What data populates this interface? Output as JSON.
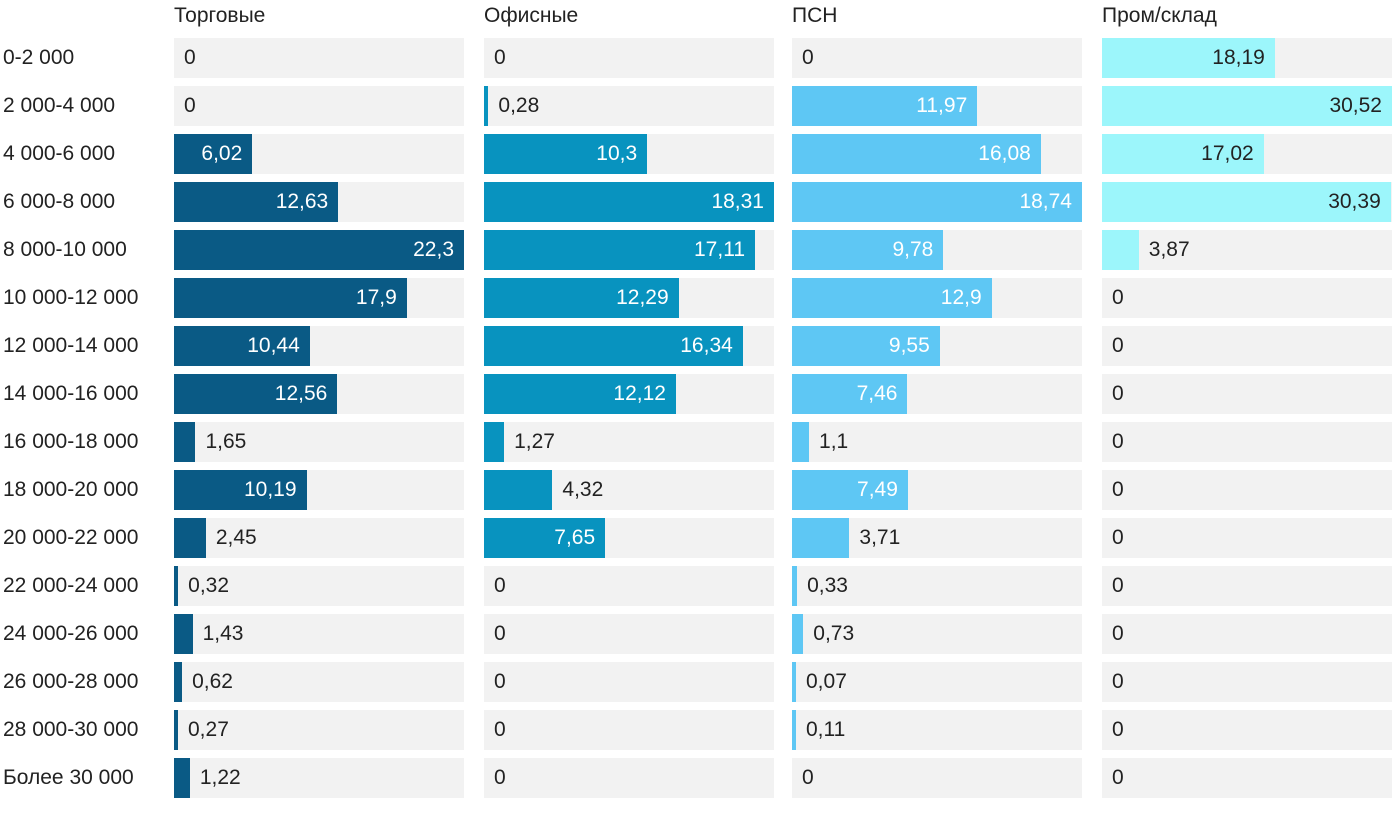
{
  "chart_data": {
    "type": "bar",
    "orientation": "horizontal",
    "categories": [
      "0-2 000",
      "2 000-4 000",
      "4 000-6 000",
      "6 000-8 000",
      "8 000-10 000",
      "10 000-12 000",
      "12 000-14 000",
      "14 000-16 000",
      "16 000-18 000",
      "18 000-20 000",
      "20 000-22 000",
      "22 000-24 000",
      "24 000-26 000",
      "26 000-28 000",
      "28 000-30 000",
      "Более 30 000"
    ],
    "series": [
      {
        "name": "Торговые",
        "color": "#0a5a85",
        "labels": [
          "0",
          "0",
          "6,02",
          "12,63",
          "22,3",
          "17,9",
          "10,44",
          "12,56",
          "1,65",
          "10,19",
          "2,45",
          "0,32",
          "1,43",
          "0,62",
          "0,27",
          "1,22"
        ],
        "values": [
          0,
          0,
          6.02,
          12.63,
          22.3,
          17.9,
          10.44,
          12.56,
          1.65,
          10.19,
          2.45,
          0.32,
          1.43,
          0.62,
          0.27,
          1.22
        ],
        "xlim": [
          0,
          22.3
        ]
      },
      {
        "name": "Офисные",
        "color": "#0893bf",
        "labels": [
          "0",
          "0,28",
          "10,3",
          "18,31",
          "17,11",
          "12,29",
          "16,34",
          "12,12",
          "1,27",
          "4,32",
          "7,65",
          "0",
          "0",
          "0",
          "0",
          "0"
        ],
        "values": [
          0,
          0.28,
          10.3,
          18.31,
          17.11,
          12.29,
          16.34,
          12.12,
          1.27,
          4.32,
          7.65,
          0,
          0,
          0,
          0,
          0
        ],
        "xlim": [
          0,
          18.31
        ]
      },
      {
        "name": "ПСН",
        "color": "#5ec7f4",
        "labels": [
          "0",
          "11,97",
          "16,08",
          "18,74",
          "9,78",
          "12,9",
          "9,55",
          "7,46",
          "1,1",
          "7,49",
          "3,71",
          "0,33",
          "0,73",
          "0,07",
          "0,11",
          "0"
        ],
        "values": [
          0,
          11.97,
          16.08,
          18.74,
          9.78,
          12.9,
          9.55,
          7.46,
          1.1,
          7.49,
          3.71,
          0.33,
          0.73,
          0.07,
          0.11,
          0
        ],
        "xlim": [
          0,
          18.74
        ]
      },
      {
        "name": "Пром/склад",
        "color": "#9cf6fb",
        "labels": [
          "18,19",
          "30,52",
          "17,02",
          "30,39",
          "3,87",
          "0",
          "0",
          "0",
          "0",
          "0",
          "0",
          "0",
          "0",
          "0",
          "0",
          "0"
        ],
        "values": [
          18.19,
          30.52,
          17.02,
          30.39,
          3.87,
          0,
          0,
          0,
          0,
          0,
          0,
          0,
          0,
          0,
          0,
          0
        ],
        "xlim": [
          0,
          30.52
        ]
      }
    ],
    "title": "",
    "xlabel": "",
    "ylabel": "",
    "grid": false,
    "legend": "none"
  }
}
